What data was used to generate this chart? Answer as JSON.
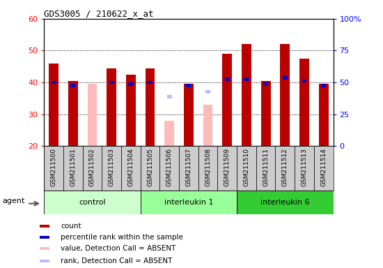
{
  "title": "GDS3005 / 210622_x_at",
  "samples": [
    "GSM211500",
    "GSM211501",
    "GSM211502",
    "GSM211503",
    "GSM211504",
    "GSM211505",
    "GSM211506",
    "GSM211507",
    "GSM211508",
    "GSM211509",
    "GSM211510",
    "GSM211511",
    "GSM211512",
    "GSM211513",
    "GSM211514"
  ],
  "count_values": [
    46,
    40.5,
    null,
    44.5,
    42.5,
    44.5,
    null,
    39.5,
    null,
    49,
    52,
    40.5,
    52,
    47.5,
    39.5
  ],
  "rank_values": [
    40,
    39,
    null,
    40,
    39.5,
    40,
    null,
    39,
    null,
    41,
    41,
    39.5,
    41.5,
    40.5,
    39
  ],
  "absent_count_values": [
    null,
    null,
    39.5,
    null,
    null,
    null,
    28,
    null,
    33,
    null,
    null,
    null,
    null,
    null,
    null
  ],
  "absent_rank_values": [
    null,
    null,
    null,
    null,
    null,
    null,
    35.5,
    null,
    37,
    null,
    null,
    null,
    null,
    null,
    null
  ],
  "groups": [
    {
      "label": "control",
      "start": 0,
      "end": 5,
      "color": "#ccffcc"
    },
    {
      "label": "interleukin 1",
      "start": 5,
      "end": 10,
      "color": "#99ff99"
    },
    {
      "label": "interleukin 6",
      "start": 10,
      "end": 15,
      "color": "#33cc33"
    }
  ],
  "ylim_left": [
    20,
    60
  ],
  "ylim_right": [
    0,
    100
  ],
  "yticks_left": [
    20,
    30,
    40,
    50,
    60
  ],
  "yticks_right": [
    0,
    25,
    50,
    75,
    100
  ],
  "ytick_labels_right": [
    "0",
    "25",
    "50",
    "75",
    "100%"
  ],
  "count_color": "#bb0000",
  "rank_color": "#0000cc",
  "absent_count_color": "#ffbbbb",
  "absent_rank_color": "#bbbbff",
  "tick_bg_color": "#cccccc",
  "agent_label": "agent"
}
